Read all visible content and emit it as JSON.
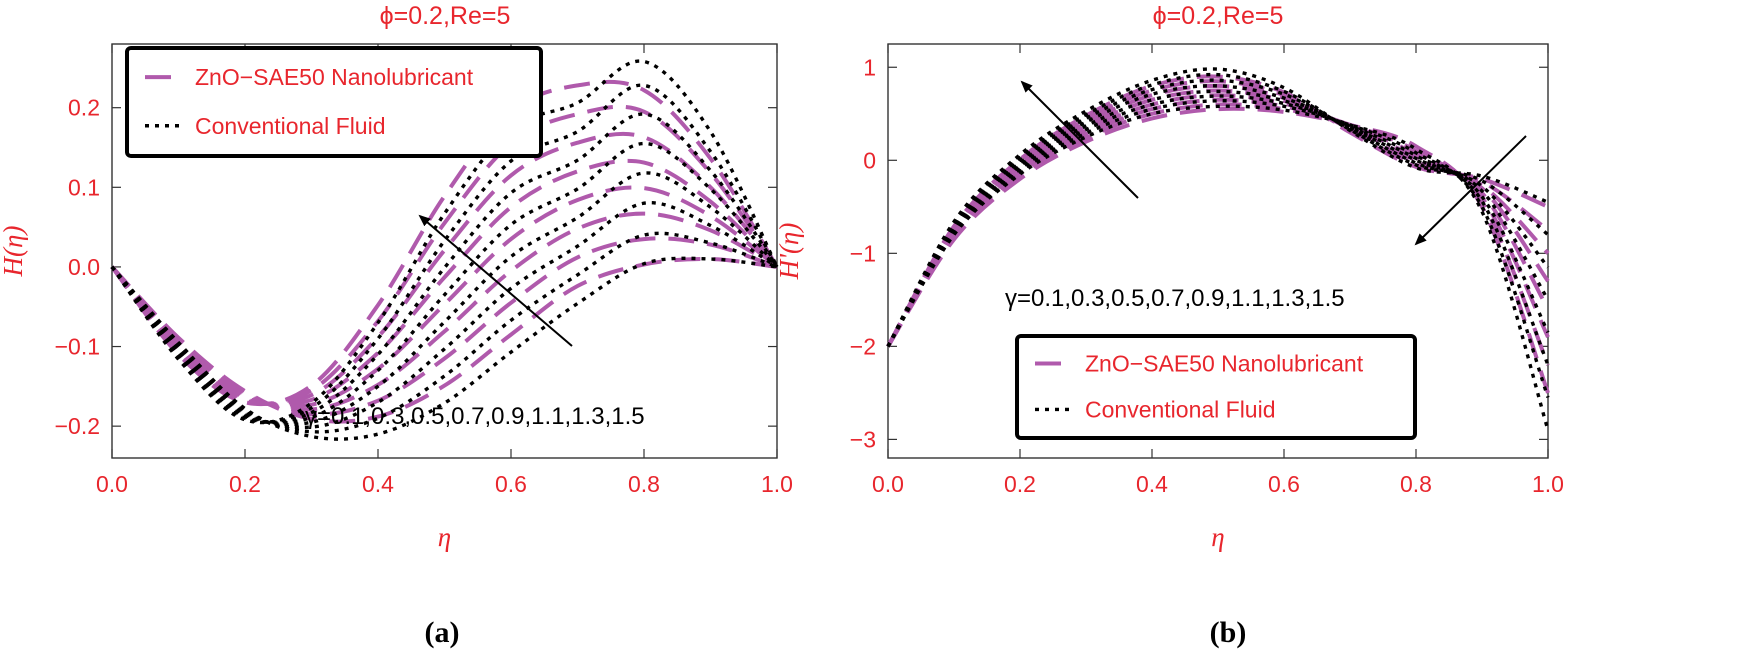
{
  "panel_labels": [
    "(a)",
    "(b)"
  ],
  "colors": {
    "nano": "#b05aac",
    "conv": "#000000",
    "text": "#e8262d",
    "frame": "#333333"
  },
  "chart_data": [
    {
      "type": "line",
      "title": "ϕ=0.2,Re=5",
      "xlabel": "η",
      "ylabel": "H(η)",
      "xlim": [
        0,
        1
      ],
      "ylim": [
        -0.24,
        0.28
      ],
      "xticks": [
        0.0,
        0.2,
        0.4,
        0.6,
        0.8,
        1.0
      ],
      "xtick_labels": [
        "0.0",
        "0.2",
        "0.4",
        "0.6",
        "0.8",
        "1.0"
      ],
      "yticks": [
        0.2,
        0.1,
        0.0,
        -0.1,
        -0.2
      ],
      "ytick_labels": [
        "0.2",
        "0.1",
        "0.0",
        "−0.1",
        "−0.2"
      ],
      "legend": [
        "ZnO−SAE50 Nanolubricant",
        "Conventional Fluid"
      ],
      "legend_position": "top-left",
      "annotation": "γ=0.1,0.3,0.5,0.7,0.9,1.1,1.3,1.5",
      "arrow": "increasing γ",
      "gamma": [
        0.1,
        0.3,
        0.5,
        0.7,
        0.9,
        1.1,
        1.3,
        1.5
      ],
      "x": [
        0,
        0.1,
        0.2,
        0.3,
        0.4,
        0.5,
        0.6,
        0.7,
        0.8,
        0.9,
        1.0
      ],
      "series": [
        {
          "name": "ZnO−SAE50 Nanolubricant",
          "values": [
            [
              0,
              -0.089,
              -0.156,
              -0.191,
              -0.188,
              -0.149,
              -0.085,
              -0.024,
              0.003,
              0.01,
              0
            ],
            [
              0,
              -0.092,
              -0.158,
              -0.185,
              -0.168,
              -0.115,
              -0.045,
              0.012,
              0.035,
              0.028,
              0
            ],
            [
              0,
              -0.095,
              -0.16,
              -0.179,
              -0.148,
              -0.081,
              -0.005,
              0.048,
              0.067,
              0.046,
              0
            ],
            [
              0,
              -0.098,
              -0.162,
              -0.173,
              -0.128,
              -0.047,
              0.035,
              0.084,
              0.099,
              0.064,
              0
            ],
            [
              0,
              -0.101,
              -0.164,
              -0.167,
              -0.108,
              -0.013,
              0.075,
              0.12,
              0.131,
              0.082,
              0
            ],
            [
              0,
              -0.104,
              -0.166,
              -0.161,
              -0.088,
              0.021,
              0.115,
              0.156,
              0.163,
              0.1,
              0
            ],
            [
              0,
              -0.107,
              -0.168,
              -0.155,
              -0.068,
              0.055,
              0.155,
              0.192,
              0.195,
              0.118,
              0
            ],
            [
              0,
              -0.11,
              -0.17,
              -0.149,
              -0.048,
              0.089,
              0.195,
              0.228,
              0.222,
              0.136,
              0
            ]
          ]
        },
        {
          "name": "Conventional Fluid",
          "values": [
            [
              0,
              -0.095,
              -0.178,
              -0.213,
              -0.21,
              -0.171,
              -0.107,
              -0.046,
              0.004,
              0.01,
              0
            ],
            [
              0,
              -0.098,
              -0.18,
              -0.207,
              -0.19,
              -0.137,
              -0.067,
              -0.01,
              0.04,
              0.03,
              0
            ],
            [
              0,
              -0.101,
              -0.182,
              -0.201,
              -0.17,
              -0.103,
              -0.027,
              0.026,
              0.08,
              0.052,
              0
            ],
            [
              0,
              -0.104,
              -0.184,
              -0.195,
              -0.15,
              -0.069,
              0.013,
              0.062,
              0.118,
              0.075,
              0
            ],
            [
              0,
              -0.107,
              -0.186,
              -0.189,
              -0.13,
              -0.035,
              0.053,
              0.098,
              0.155,
              0.098,
              0
            ],
            [
              0,
              -0.11,
              -0.188,
              -0.183,
              -0.11,
              -0.001,
              0.093,
              0.134,
              0.192,
              0.121,
              0
            ],
            [
              0,
              -0.113,
              -0.19,
              -0.177,
              -0.09,
              0.033,
              0.133,
              0.17,
              0.228,
              0.145,
              0
            ],
            [
              0,
              -0.116,
              -0.192,
              -0.171,
              -0.07,
              0.067,
              0.173,
              0.206,
              0.258,
              0.17,
              0
            ]
          ]
        }
      ]
    },
    {
      "type": "line",
      "title": "ϕ=0.2,Re=5",
      "xlabel": "η",
      "ylabel": "H'(η)",
      "xlim": [
        0,
        1
      ],
      "ylim": [
        -3.2,
        1.25
      ],
      "xticks": [
        0.0,
        0.2,
        0.4,
        0.6,
        0.8,
        1.0
      ],
      "xtick_labels": [
        "0.0",
        "0.2",
        "0.4",
        "0.6",
        "0.8",
        "1.0"
      ],
      "yticks": [
        1,
        0,
        -1,
        -2,
        -3
      ],
      "ytick_labels": [
        "1",
        "0",
        "−1",
        "−2",
        "−3"
      ],
      "legend": [
        "ZnO−SAE50 Nanolubricant",
        "Conventional Fluid"
      ],
      "legend_position": "bottom-center",
      "annotation": "γ=0.1,0.3,0.5,0.7,0.9,1.1,1.3,1.5",
      "arrow": "increasing γ",
      "gamma": [
        0.1,
        0.3,
        0.5,
        0.7,
        0.9,
        1.1,
        1.3,
        1.5
      ],
      "x": [
        0,
        0.1,
        0.2,
        0.3,
        0.4,
        0.5,
        0.6,
        0.7,
        0.8,
        0.9,
        1.0
      ],
      "series": [
        {
          "name": "ZnO−SAE50 Nanolubricant",
          "values": [
            [
              -2,
              -0.85,
              -0.2,
              0.2,
              0.45,
              0.55,
              0.52,
              0.38,
              0.15,
              -0.5,
              -2.5
            ],
            [
              -2,
              -0.83,
              -0.17,
              0.24,
              0.5,
              0.6,
              0.55,
              0.38,
              0.1,
              -0.45,
              -2.2
            ],
            [
              -2,
              -0.81,
              -0.14,
              0.28,
              0.55,
              0.65,
              0.58,
              0.38,
              0.06,
              -0.4,
              -1.9
            ],
            [
              -2,
              -0.79,
              -0.11,
              0.32,
              0.6,
              0.7,
              0.61,
              0.37,
              0.03,
              -0.35,
              -1.6
            ],
            [
              -2,
              -0.77,
              -0.08,
              0.36,
              0.65,
              0.75,
              0.64,
              0.36,
              0.0,
              -0.3,
              -1.3
            ],
            [
              -2,
              -0.75,
              -0.05,
              0.4,
              0.7,
              0.8,
              0.67,
              0.34,
              -0.02,
              -0.27,
              -1.0
            ],
            [
              -2,
              -0.73,
              -0.02,
              0.44,
              0.75,
              0.85,
              0.7,
              0.32,
              -0.05,
              -0.23,
              -0.75
            ],
            [
              -2,
              -0.71,
              0.01,
              0.48,
              0.8,
              0.9,
              0.73,
              0.3,
              -0.07,
              -0.2,
              -0.5
            ]
          ]
        },
        {
          "name": "Conventional Fluid",
          "values": [
            [
              -2,
              -0.8,
              -0.15,
              0.25,
              0.5,
              0.58,
              0.54,
              0.38,
              0.12,
              -0.55,
              -2.9
            ],
            [
              -2,
              -0.78,
              -0.12,
              0.29,
              0.55,
              0.64,
              0.58,
              0.38,
              0.08,
              -0.5,
              -2.55
            ],
            [
              -2,
              -0.76,
              -0.09,
              0.33,
              0.6,
              0.69,
              0.61,
              0.37,
              0.05,
              -0.44,
              -2.2
            ],
            [
              -2,
              -0.74,
              -0.06,
              0.37,
              0.65,
              0.74,
              0.64,
              0.36,
              0.02,
              -0.39,
              -1.85
            ],
            [
              -2,
              -0.72,
              -0.03,
              0.41,
              0.71,
              0.8,
              0.67,
              0.35,
              0.0,
              -0.33,
              -1.5
            ],
            [
              -2,
              -0.7,
              0.0,
              0.45,
              0.76,
              0.86,
              0.71,
              0.34,
              -0.03,
              -0.28,
              -1.15
            ],
            [
              -2,
              -0.68,
              0.03,
              0.49,
              0.81,
              0.92,
              0.74,
              0.33,
              -0.05,
              -0.22,
              -0.8
            ],
            [
              -2,
              -0.66,
              0.06,
              0.53,
              0.86,
              0.98,
              0.78,
              0.32,
              -0.08,
              -0.17,
              -0.45
            ]
          ]
        }
      ]
    }
  ]
}
